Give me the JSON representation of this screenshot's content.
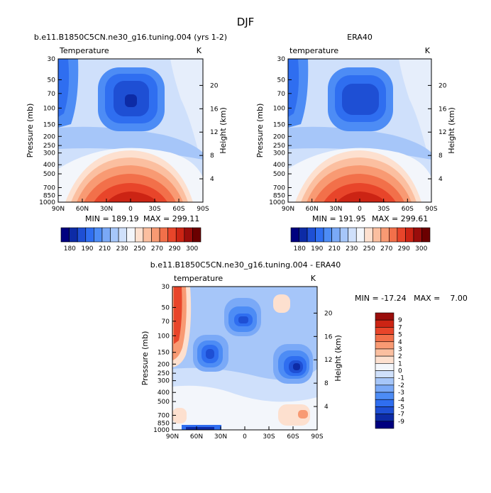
{
  "figure_title": "DJF",
  "colors": {
    "temp_scale": [
      "#00007f",
      "#0d2ba6",
      "#1e4fd4",
      "#2f6ef0",
      "#4d8cf5",
      "#7aa9f7",
      "#a6c6f9",
      "#cfe0fb",
      "#f3f6fb",
      "#fde0cf",
      "#fbbfa0",
      "#f89a73",
      "#f2704a",
      "#e8452a",
      "#cc2414",
      "#9a0d0b",
      "#6b0000"
    ],
    "diff_scale": [
      "#00007f",
      "#0d2ba6",
      "#1e4fd4",
      "#2f6ef0",
      "#4d8cf5",
      "#7aa9f7",
      "#a6c6f9",
      "#cfe0fb",
      "#f3f6fb",
      "#fde0cf",
      "#fbbfa0",
      "#f89a73",
      "#f2704a",
      "#e8452a",
      "#cc2414",
      "#9a0d0b"
    ]
  },
  "chart_data": [
    {
      "id": "model",
      "type": "contour",
      "title": "b.e11.B1850C5CN.ne30_g16.tuning.004 (yrs 1-2)",
      "left_label": "Temperature",
      "right_label": "K",
      "xlabel": "",
      "ylabel": "Pressure (mb)",
      "y2label": "Height (km)",
      "x_ticks": [
        "90N",
        "60N",
        "30N",
        "0",
        "30S",
        "60S",
        "90S"
      ],
      "y_ticks": [
        "30",
        "50",
        "70",
        "100",
        "150",
        "200",
        "250",
        "300",
        "400",
        "500",
        "700",
        "850",
        "1000"
      ],
      "y2_ticks": [
        "20",
        "16",
        "12",
        "8",
        "4"
      ],
      "min_label": "MIN = 189.19",
      "max_label": "MAX = 299.11",
      "min": 189.19,
      "max": 299.11,
      "colorbar_labels": [
        "180",
        "190",
        "210",
        "230",
        "250",
        "270",
        "290",
        "300"
      ]
    },
    {
      "id": "obs",
      "type": "contour",
      "title": "ERA40",
      "left_label": "temperature",
      "right_label": "K",
      "ylabel": "Pressure (mb)",
      "y2label": "Height (km)",
      "x_ticks": [
        "90N",
        "60N",
        "30N",
        "0",
        "30S",
        "60S",
        "90S"
      ],
      "y_ticks": [
        "30",
        "50",
        "70",
        "100",
        "150",
        "200",
        "250",
        "300",
        "400",
        "500",
        "700",
        "850",
        "1000"
      ],
      "y2_ticks": [
        "20",
        "16",
        "12",
        "8",
        "4"
      ],
      "min_label": "MIN = 191.95",
      "max_label": "MAX = 299.61",
      "min": 191.95,
      "max": 299.61,
      "colorbar_labels": [
        "180",
        "190",
        "210",
        "230",
        "250",
        "270",
        "290",
        "300"
      ]
    },
    {
      "id": "diff",
      "type": "contour",
      "title": "b.e11.B1850C5CN.ne30_g16.tuning.004 - ERA40",
      "left_label": "temperature",
      "right_label": "K",
      "ylabel": "Pressure (mb)",
      "y2label": "Height (km)",
      "x_ticks": [
        "90N",
        "60N",
        "30N",
        "0",
        "30S",
        "60S",
        "90S"
      ],
      "y_ticks": [
        "30",
        "50",
        "70",
        "100",
        "150",
        "200",
        "250",
        "300",
        "400",
        "500",
        "700",
        "850",
        "1000"
      ],
      "y2_ticks": [
        "20",
        "16",
        "12",
        "8",
        "4"
      ],
      "minmax_label": "MIN = -17.24   MAX =    7.00",
      "min": -17.24,
      "max": 7.0,
      "colorbar_labels": [
        "9",
        "7",
        "5",
        "4",
        "3",
        "2",
        "1",
        "0",
        "-1",
        "-2",
        "-3",
        "-4",
        "-5",
        "-7",
        "-9"
      ]
    }
  ]
}
